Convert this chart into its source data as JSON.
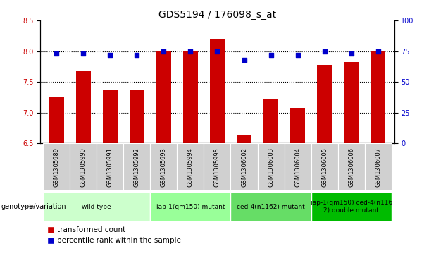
{
  "title": "GDS5194 / 176098_s_at",
  "samples": [
    "GSM1305989",
    "GSM1305990",
    "GSM1305991",
    "GSM1305992",
    "GSM1305993",
    "GSM1305994",
    "GSM1305995",
    "GSM1306002",
    "GSM1306003",
    "GSM1306004",
    "GSM1306005",
    "GSM1306006",
    "GSM1306007"
  ],
  "bar_values": [
    7.25,
    7.68,
    7.38,
    7.38,
    8.0,
    8.0,
    8.2,
    6.63,
    7.22,
    7.08,
    7.78,
    7.82,
    8.0
  ],
  "dot_values": [
    73,
    73,
    72,
    72,
    75,
    75,
    75,
    68,
    72,
    72,
    75,
    73,
    75
  ],
  "bar_color": "#cc0000",
  "dot_color": "#0000cc",
  "ylim_left": [
    6.5,
    8.5
  ],
  "ylim_right": [
    0,
    100
  ],
  "yticks_left": [
    6.5,
    7.0,
    7.5,
    8.0,
    8.5
  ],
  "yticks_right": [
    0,
    25,
    50,
    75,
    100
  ],
  "groups": [
    {
      "label": "wild type",
      "indices": [
        0,
        1,
        2,
        3
      ],
      "color": "#ccffcc"
    },
    {
      "label": "iap-1(qm150) mutant",
      "indices": [
        4,
        5,
        6
      ],
      "color": "#99ff99"
    },
    {
      "label": "ced-4(n1162) mutant",
      "indices": [
        7,
        8,
        9
      ],
      "color": "#66dd66"
    },
    {
      "label": "iap-1(qm150) ced-4(n116\n2) double mutant",
      "indices": [
        10,
        11,
        12
      ],
      "color": "#00bb00"
    }
  ],
  "genotype_label": "genotype/variation",
  "legend_bar_label": "transformed count",
  "legend_dot_label": "percentile rank within the sample",
  "title_fontsize": 10,
  "tick_fontsize": 7,
  "sample_fontsize": 6,
  "group_fontsize": 6.5,
  "legend_fontsize": 7.5
}
